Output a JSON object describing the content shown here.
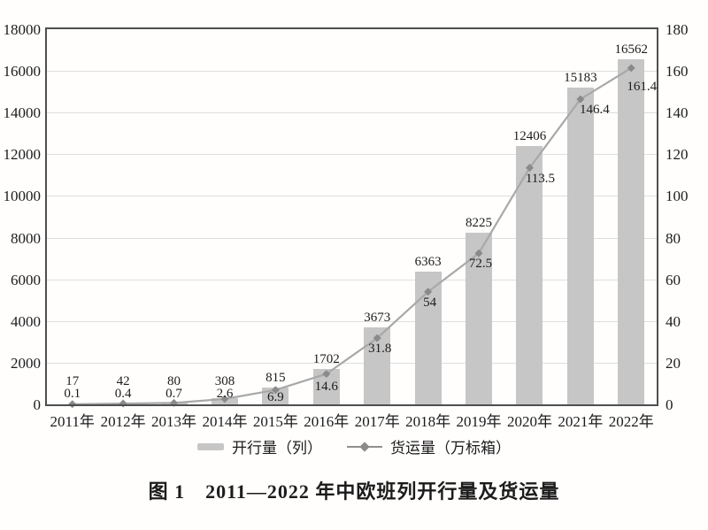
{
  "figure": {
    "title": "图 1　2011—2022 年中欧班列开行量及货运量"
  },
  "chart_data": {
    "type": "combo-bar-line",
    "title": "图 1　2011—2022 年中欧班列开行量及货运量",
    "categories": [
      "2011年",
      "2012年",
      "2013年",
      "2014年",
      "2015年",
      "2016年",
      "2017年",
      "2018年",
      "2019年",
      "2020年",
      "2021年",
      "2022年"
    ],
    "series": [
      {
        "name": "开行量（列）",
        "type": "bar",
        "axis": "left",
        "color": "#c6c6c6",
        "values": [
          17,
          42,
          80,
          308,
          815,
          1702,
          3673,
          6363,
          8225,
          12406,
          15183,
          16562
        ],
        "labels": [
          "17",
          "42",
          "80",
          "308",
          "815",
          "1702",
          "3673",
          "6363",
          "8225",
          "12406",
          "15183",
          "16562"
        ]
      },
      {
        "name": "货运量（万标箱）",
        "type": "line",
        "axis": "right",
        "color": "#a8a8a8",
        "marker": "diamond",
        "marker_color": "#8a8a8a",
        "values": [
          0.1,
          0.4,
          0.7,
          2.6,
          6.9,
          14.6,
          31.8,
          54,
          72.5,
          113.5,
          146.4,
          161.4
        ],
        "labels": [
          "0.1",
          "0.4",
          "0.7",
          "2.6",
          "6.9",
          "14.6",
          "31.8",
          "54",
          "72.5",
          "113.5",
          "146.4",
          "161.4"
        ]
      }
    ],
    "left_axis": {
      "min": 0,
      "max": 18000,
      "step": 2000,
      "ticks": [
        0,
        2000,
        4000,
        6000,
        8000,
        10000,
        12000,
        14000,
        16000,
        18000
      ],
      "tick_labels": [
        "0",
        "2000",
        "4000",
        "6000",
        "8000",
        "10000",
        "12000",
        "14000",
        "16000",
        "18000"
      ]
    },
    "right_axis": {
      "min": 0,
      "max": 180,
      "step": 20,
      "ticks": [
        0,
        20,
        40,
        60,
        80,
        100,
        120,
        140,
        160,
        180
      ],
      "tick_labels": [
        "0",
        "20",
        "40",
        "60",
        "80",
        "100",
        "120",
        "140",
        "160",
        "180"
      ]
    },
    "grid": true,
    "legend_position": "bottom"
  }
}
